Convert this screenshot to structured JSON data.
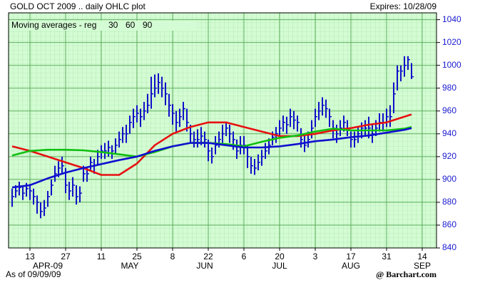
{
  "chart_data": {
    "type": "ohlc",
    "title": "GOLD OCT 2009 .. daily OHLC plot",
    "expires": "Expires: 10/28/09",
    "moving_averages_label": "Moving averages - reg",
    "as_of": "As of 09/09/09",
    "source": "@ Barchart.com",
    "bar_color": "#1010c8",
    "xlim": [
      -1,
      119
    ],
    "ylim": [
      840,
      1046
    ],
    "yticks": [
      840,
      860,
      880,
      900,
      920,
      940,
      960,
      980,
      1000,
      1020,
      1040
    ],
    "xticks": [
      {
        "value": 5,
        "label": "13"
      },
      {
        "value": 15,
        "label": "27"
      },
      {
        "value": 25,
        "label": "11"
      },
      {
        "value": 35,
        "label": "25"
      },
      {
        "value": 45,
        "label": "8"
      },
      {
        "value": 55,
        "label": "22"
      },
      {
        "value": 65,
        "label": "6"
      },
      {
        "value": 75,
        "label": "20"
      },
      {
        "value": 85,
        "label": "3"
      },
      {
        "value": 95,
        "label": "17"
      },
      {
        "value": 105,
        "label": "31"
      },
      {
        "value": 115,
        "label": "14"
      }
    ],
    "month_labels": [
      {
        "value": 10,
        "label": "APR-09"
      },
      {
        "value": 33,
        "label": "MAY"
      },
      {
        "value": 54,
        "label": "JUN"
      },
      {
        "value": 75,
        "label": "JUL"
      },
      {
        "value": 95,
        "label": "AUG"
      },
      {
        "value": 115,
        "label": "SEP"
      }
    ],
    "grid": true,
    "high": [
      892,
      895,
      898,
      894,
      897,
      896,
      892,
      886,
      880,
      882,
      890,
      900,
      912,
      916,
      920,
      910,
      898,
      902,
      895,
      894,
      912,
      910,
      920,
      918,
      926,
      930,
      932,
      934,
      930,
      936,
      942,
      946,
      948,
      956,
      962,
      965,
      962,
      968,
      975,
      990,
      992,
      993,
      990,
      985,
      975,
      966,
      960,
      962,
      968,
      962,
      948,
      942,
      944,
      946,
      942,
      935,
      928,
      938,
      942,
      948,
      950,
      948,
      942,
      935,
      938,
      938,
      930,
      920,
      918,
      922,
      926,
      932,
      936,
      942,
      946,
      952,
      956,
      955,
      962,
      960,
      956,
      945,
      938,
      942,
      952,
      962,
      968,
      972,
      970,
      962,
      952,
      948,
      952,
      956,
      952,
      942,
      942,
      946,
      950,
      952,
      955,
      948,
      952,
      958,
      958,
      962,
      965,
      985,
      1000,
      1000,
      1008,
      1008,
      1002
    ],
    "low": [
      876,
      884,
      886,
      882,
      885,
      882,
      878,
      870,
      866,
      868,
      876,
      886,
      898,
      902,
      905,
      888,
      882,
      885,
      878,
      880,
      898,
      898,
      908,
      905,
      912,
      918,
      918,
      920,
      918,
      922,
      928,
      932,
      932,
      940,
      945,
      950,
      946,
      952,
      958,
      962,
      972,
      975,
      972,
      965,
      955,
      948,
      942,
      946,
      952,
      942,
      932,
      928,
      928,
      930,
      928,
      916,
      914,
      922,
      928,
      932,
      938,
      932,
      926,
      918,
      922,
      922,
      910,
      905,
      904,
      908,
      912,
      918,
      922,
      930,
      932,
      938,
      942,
      940,
      946,
      944,
      942,
      928,
      924,
      928,
      936,
      946,
      952,
      956,
      954,
      946,
      936,
      932,
      938,
      942,
      938,
      928,
      928,
      932,
      936,
      938,
      936,
      932,
      938,
      942,
      942,
      946,
      946,
      958,
      978,
      986,
      990,
      996,
      988
    ],
    "close": [
      885,
      890,
      893,
      888,
      892,
      890,
      885,
      880,
      872,
      875,
      885,
      895,
      905,
      910,
      912,
      895,
      890,
      895,
      885,
      888,
      905,
      905,
      915,
      912,
      920,
      925,
      925,
      928,
      925,
      930,
      935,
      940,
      940,
      950,
      955,
      958,
      955,
      960,
      965,
      975,
      980,
      985,
      980,
      975,
      965,
      958,
      950,
      955,
      962,
      950,
      940,
      935,
      935,
      938,
      935,
      925,
      920,
      930,
      935,
      940,
      945,
      940,
      935,
      925,
      930,
      930,
      920,
      912,
      910,
      915,
      920,
      925,
      930,
      937,
      940,
      945,
      950,
      948,
      955,
      952,
      950,
      935,
      930,
      935,
      945,
      955,
      960,
      965,
      962,
      955,
      945,
      940,
      945,
      950,
      945,
      935,
      935,
      940,
      945,
      945,
      945,
      940,
      945,
      950,
      950,
      955,
      955,
      975,
      995,
      995,
      1000,
      1005,
      990
    ],
    "series": [
      {
        "name": "30",
        "color": "#e81010",
        "x": [
          0,
          5,
          10,
          15,
          20,
          25,
          30,
          35,
          40,
          45,
          50,
          55,
          60,
          65,
          70,
          75,
          80,
          85,
          90,
          95,
          100,
          105,
          110,
          112
        ],
        "values": [
          929,
          925,
          920,
          915,
          910,
          904,
          904,
          914,
          930,
          940,
          946,
          950,
          950,
          946,
          942,
          938,
          938,
          940,
          943,
          945,
          948,
          950,
          955,
          957
        ]
      },
      {
        "name": "60",
        "color": "#10c010",
        "x": [
          0,
          5,
          10,
          15,
          20,
          25,
          30,
          35,
          40,
          45,
          50,
          55,
          60,
          65,
          70,
          75,
          80,
          85,
          90,
          95,
          100,
          105,
          110,
          112
        ],
        "values": [
          921,
          925,
          926,
          926,
          925.5,
          924,
          922,
          920,
          924,
          929,
          932,
          932,
          931,
          929,
          933,
          936.5,
          938.5,
          942,
          944.5,
          943,
          943,
          943,
          944.5,
          946
        ]
      },
      {
        "name": "90",
        "color": "#1010d0",
        "x": [
          0,
          5,
          10,
          15,
          20,
          25,
          30,
          35,
          40,
          45,
          50,
          55,
          60,
          65,
          70,
          75,
          80,
          85,
          90,
          95,
          100,
          105,
          110,
          112
        ],
        "values": [
          893,
          895,
          901,
          906,
          910,
          913.5,
          917,
          920,
          925,
          929,
          932,
          932,
          930,
          928,
          928,
          929,
          931,
          933.5,
          935,
          937,
          938.5,
          941,
          943.5,
          945
        ]
      }
    ]
  }
}
